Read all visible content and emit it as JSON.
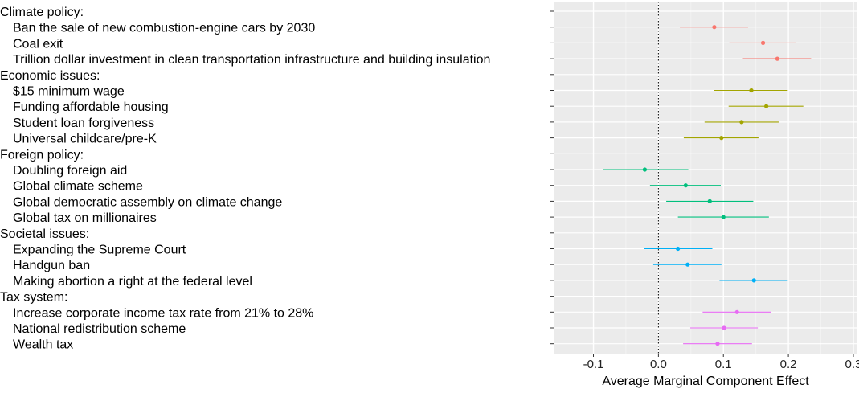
{
  "chart_data": {
    "type": "scatter",
    "subtype": "coefficient-plot-with-error-bars",
    "title": "",
    "xlabel": "Average Marginal Component Effect",
    "ylabel": "",
    "xlim": [
      -0.16,
      0.305
    ],
    "xticks": [
      -0.1,
      0.0,
      0.1,
      0.2,
      0.3
    ],
    "xtick_labels": [
      "-0.1",
      "0.0",
      "0.1",
      "0.2",
      "0.3"
    ],
    "reference_line": {
      "x": 0,
      "style": "dotted"
    },
    "grid": true,
    "legend": "none",
    "panel_background": "#ebebeb",
    "groups": [
      {
        "label": "Climate policy:",
        "color": "#f8766d",
        "items": [
          {
            "label": "Ban the sale of new combustion-engine cars by 2030",
            "estimate": 0.086,
            "low": 0.033,
            "high": 0.138
          },
          {
            "label": "Coal exit",
            "estimate": 0.161,
            "low": 0.109,
            "high": 0.212
          },
          {
            "label": "Trillion dollar investment in clean transportation infrastructure and building insulation",
            "estimate": 0.183,
            "low": 0.13,
            "high": 0.235
          }
        ]
      },
      {
        "label": "Economic issues:",
        "color": "#a3a500",
        "items": [
          {
            "label": "$15 minimum wage",
            "estimate": 0.143,
            "low": 0.086,
            "high": 0.199
          },
          {
            "label": "Funding affordable housing",
            "estimate": 0.166,
            "low": 0.108,
            "high": 0.223
          },
          {
            "label": "Student loan forgiveness",
            "estimate": 0.128,
            "low": 0.071,
            "high": 0.185
          },
          {
            "label": "Universal childcare/pre-K",
            "estimate": 0.097,
            "low": 0.039,
            "high": 0.154
          }
        ]
      },
      {
        "label": "Foreign policy:",
        "color": "#00bf7d",
        "items": [
          {
            "label": "Doubling foreign aid",
            "estimate": -0.021,
            "low": -0.085,
            "high": 0.046
          },
          {
            "label": "Global climate scheme",
            "estimate": 0.042,
            "low": -0.013,
            "high": 0.096
          },
          {
            "label": "Global democratic assembly on climate change",
            "estimate": 0.079,
            "low": 0.012,
            "high": 0.146
          },
          {
            "label": "Global tax on millionaires",
            "estimate": 0.1,
            "low": 0.03,
            "high": 0.17
          }
        ]
      },
      {
        "label": "Societal issues:",
        "color": "#00b0f6",
        "items": [
          {
            "label": "Expanding the Supreme Court",
            "estimate": 0.03,
            "low": -0.022,
            "high": 0.083
          },
          {
            "label": "Handgun ban",
            "estimate": 0.045,
            "low": -0.008,
            "high": 0.097
          },
          {
            "label": "Making abortion a right at the federal level",
            "estimate": 0.147,
            "low": 0.094,
            "high": 0.199
          }
        ]
      },
      {
        "label": "Tax system:",
        "color": "#e76bf3",
        "items": [
          {
            "label": "Increase corporate income tax rate from 21% to 28%",
            "estimate": 0.121,
            "low": 0.068,
            "high": 0.173
          },
          {
            "label": "National redistribution scheme",
            "estimate": 0.101,
            "low": 0.049,
            "high": 0.153
          },
          {
            "label": "Wealth tax",
            "estimate": 0.091,
            "low": 0.038,
            "high": 0.144
          }
        ]
      }
    ]
  }
}
